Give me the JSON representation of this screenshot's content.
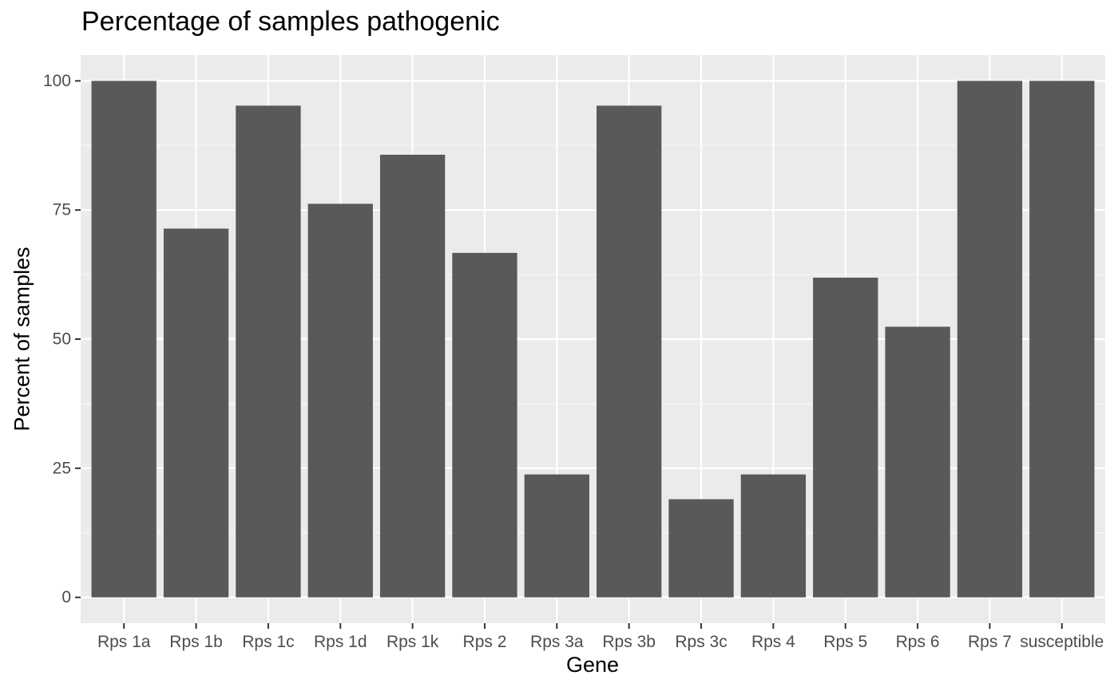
{
  "chart_data": {
    "type": "bar",
    "title": "Percentage of samples pathogenic",
    "xlabel": "Gene",
    "ylabel": "Percent of samples",
    "categories": [
      "Rps 1a",
      "Rps 1b",
      "Rps 1c",
      "Rps 1d",
      "Rps 1k",
      "Rps 2",
      "Rps 3a",
      "Rps 3b",
      "Rps 3c",
      "Rps 4",
      "Rps 5",
      "Rps 6",
      "Rps 7",
      "susceptible"
    ],
    "values": [
      100,
      71.4,
      95.2,
      76.2,
      85.7,
      66.7,
      23.8,
      95.2,
      19.0,
      23.8,
      61.9,
      52.4,
      100,
      100
    ],
    "ylim": [
      -5,
      105
    ],
    "yticks": [
      0,
      25,
      50,
      75,
      100
    ],
    "ytick_labels": [
      "0",
      "25",
      "50",
      "75",
      "100"
    ],
    "grid": true,
    "colors": {
      "bar": "#595959",
      "panel": "#ebebeb",
      "grid_major": "#ffffff",
      "grid_minor": "#f7f7f7",
      "tick": "#333333",
      "tick_label": "#4d4d4d"
    }
  }
}
